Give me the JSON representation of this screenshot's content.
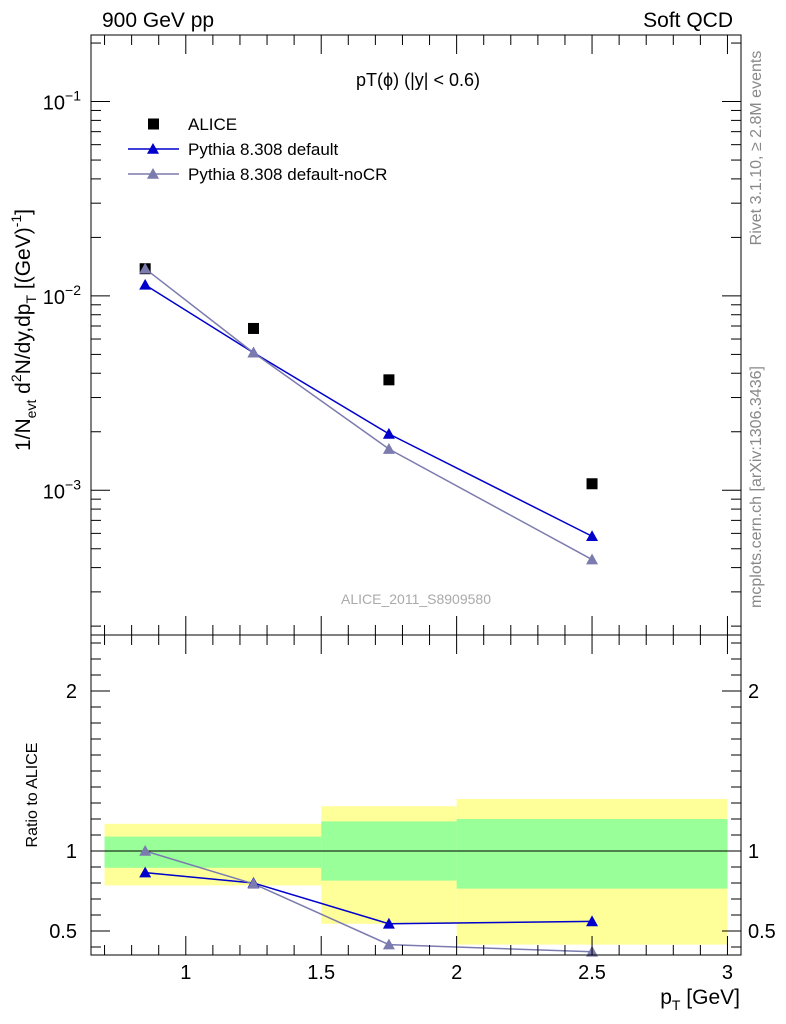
{
  "header": {
    "left": "900 GeV pp",
    "right": "Soft QCD"
  },
  "side_labels": {
    "rivet": "Rivet 3.1.10, ≥ 2.8M events",
    "mcplots": "mcplots.cern.ch [arXiv:1306.3436]"
  },
  "colors": {
    "data": "#000000",
    "default": "#0000cc",
    "nocr": "#7b7baf",
    "band_inner": "#99ff99",
    "band_outer": "#ffff99"
  },
  "chart_data": [
    {
      "type": "scatter",
      "title": "pT(ϕ) (|y| < 0.6)",
      "watermark": "ALICE_2011_S8909580",
      "ylabel": "1/N_evt d²N/dy,dp_T [(GeV)⁻¹]",
      "xlabel": "p_T [GeV]",
      "xlim": [
        0.65,
        3.05
      ],
      "ylim": [
        0.00018,
        0.22
      ],
      "yscale": "log",
      "yticks": [
        0.001,
        0.01,
        0.1
      ],
      "ytick_labels": [
        [
          "10",
          "−3"
        ],
        [
          "10",
          "−2"
        ],
        [
          "10",
          "−1"
        ]
      ],
      "legend_position": "top-left",
      "series": [
        {
          "name": "ALICE",
          "marker": "square",
          "x": [
            0.85,
            1.25,
            1.75,
            2.5
          ],
          "y": [
            0.0138,
            0.0068,
            0.0037,
            0.00108
          ]
        },
        {
          "name": "Pythia 8.308 default",
          "marker": "triangle",
          "x": [
            0.85,
            1.25,
            1.75,
            2.5
          ],
          "y": [
            0.0114,
            0.0051,
            0.00195,
            0.00058
          ]
        },
        {
          "name": "Pythia 8.308 default-noCR",
          "marker": "triangle",
          "x": [
            0.85,
            1.25,
            1.75,
            2.5
          ],
          "y": [
            0.0138,
            0.0051,
            0.00163,
            0.00044
          ]
        }
      ]
    },
    {
      "type": "line",
      "ylabel": "Ratio to ALICE",
      "xlabel": "p_T [GeV]",
      "xlim": [
        0.65,
        3.05
      ],
      "ylim": [
        0.35,
        2.35
      ],
      "xticks": [
        1,
        1.5,
        2,
        2.5,
        3
      ],
      "xtick_labels": [
        "1",
        "1.5",
        "2",
        "2.5",
        "3"
      ],
      "yticks": [
        0.5,
        1,
        2
      ],
      "ytick_labels": [
        "0.5",
        "1",
        "2"
      ],
      "reference_line": 1,
      "bands": [
        {
          "x0": 0.7,
          "x1": 1.5,
          "inner": [
            0.895,
            1.09
          ],
          "outer": [
            0.785,
            1.17
          ]
        },
        {
          "x0": 1.5,
          "x1": 2.0,
          "inner": [
            0.815,
            1.185
          ],
          "outer": [
            0.545,
            1.28
          ]
        },
        {
          "x0": 2.0,
          "x1": 3.0,
          "inner": [
            0.765,
            1.2
          ],
          "outer": [
            0.415,
            1.325
          ]
        }
      ],
      "series": [
        {
          "name": "Pythia 8.308 default",
          "x": [
            0.85,
            1.25,
            1.75,
            2.5
          ],
          "y": [
            0.865,
            0.8,
            0.545,
            0.56
          ]
        },
        {
          "name": "Pythia 8.308 default-noCR",
          "x": [
            0.85,
            1.25,
            1.75,
            2.5
          ],
          "y": [
            1.0,
            0.795,
            0.415,
            0.37
          ]
        }
      ]
    }
  ]
}
